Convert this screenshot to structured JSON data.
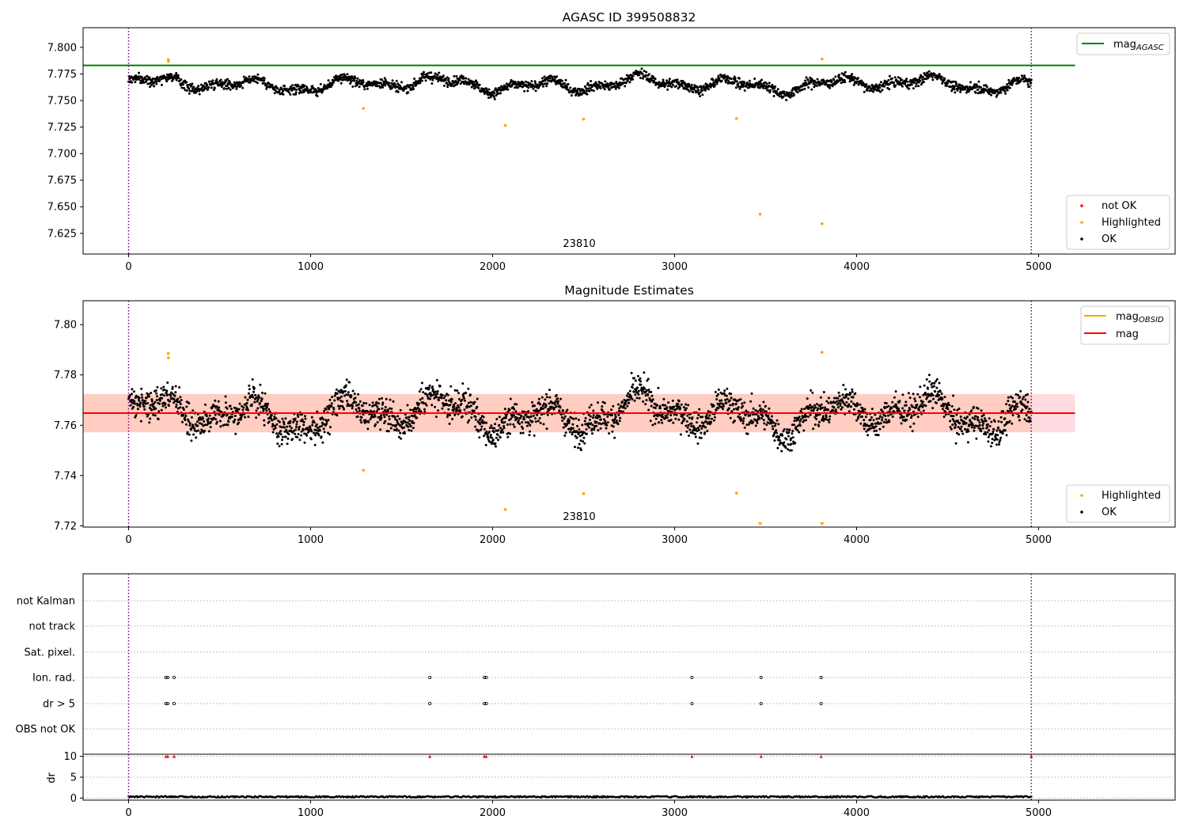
{
  "chart_data": [
    {
      "type": "scatter",
      "title": "AGASC ID 399508832",
      "annotation": "23810",
      "xlim": [
        -250,
        5750
      ],
      "ylim": [
        7.6055,
        7.8185
      ],
      "xticks": [
        0,
        1000,
        2000,
        3000,
        4000,
        5000
      ],
      "yticks": [
        7.625,
        7.65,
        7.675,
        7.7,
        7.725,
        7.75,
        7.775,
        7.8
      ],
      "ytick_labels": [
        "7.625",
        "7.650",
        "7.675",
        "7.700",
        "7.725",
        "7.750",
        "7.775",
        "7.800"
      ],
      "vlines": [
        0,
        4960
      ],
      "hlines": [
        {
          "name": "mag_AGASC",
          "y": 7.783,
          "x_range": [
            -250,
            5200
          ],
          "color": "#008000"
        }
      ],
      "series_ok": {
        "name": "OK",
        "color": "#000000",
        "x_range": [
          0,
          4960
        ],
        "n_points": 2200
      },
      "highlighted": {
        "name": "Highlighted",
        "color": "#ffa500",
        "points": [
          [
            218,
            7.7885
          ],
          [
            219,
            7.7868
          ],
          [
            1290,
            7.7425
          ],
          [
            2070,
            7.7265
          ],
          [
            2500,
            7.7325
          ],
          [
            3340,
            7.733
          ],
          [
            3470,
            7.643
          ],
          [
            3810,
            7.789
          ],
          [
            3810,
            7.634
          ]
        ]
      },
      "legend_upper": {
        "entries": [
          {
            "label": "mag",
            "sub": "AGASC",
            "color": "#008000"
          }
        ],
        "placement": "upper right"
      },
      "legend_lower": {
        "entries": [
          {
            "label": "not OK",
            "color": "#ff0000"
          },
          {
            "label": "Highlighted",
            "color": "#ffa500"
          },
          {
            "label": "OK",
            "color": "#000000"
          }
        ],
        "placement": "lower right"
      }
    },
    {
      "type": "scatter",
      "title": "Magnitude Estimates",
      "annotation": "23810",
      "xlim": [
        -250,
        5750
      ],
      "ylim": [
        7.7195,
        7.8095
      ],
      "xticks": [
        0,
        1000,
        2000,
        3000,
        4000,
        5000
      ],
      "yticks": [
        7.72,
        7.74,
        7.76,
        7.78,
        7.8
      ],
      "ytick_labels": [
        "7.72",
        "7.74",
        "7.76",
        "7.78",
        "7.80"
      ],
      "vlines": [
        0,
        4960
      ],
      "mean_line": {
        "name": "mag",
        "y": 7.7648,
        "color": "#ff0000"
      },
      "bands": [
        {
          "y": [
            7.7572,
            7.7724
          ],
          "color": "#ffc0c8"
        },
        {
          "y": [
            7.7572,
            7.7724
          ],
          "x_range": [
            -250,
            4960
          ],
          "color": "#ffc6b4"
        }
      ],
      "series_ok": {
        "name": "OK",
        "color": "#000000",
        "x_range": [
          0,
          4960
        ],
        "n_points": 2600
      },
      "highlighted": {
        "name": "Highlighted",
        "color": "#ffa500",
        "points": [
          [
            218,
            7.7885
          ],
          [
            219,
            7.7868
          ],
          [
            1290,
            7.7421
          ],
          [
            2070,
            7.7265
          ],
          [
            2500,
            7.7328
          ],
          [
            3340,
            7.733
          ],
          [
            3810,
            7.789
          ]
        ]
      },
      "legend_upper": {
        "entries": [
          {
            "label": "mag",
            "sub": "OBSID",
            "color": "#ffa500"
          },
          {
            "label": "mag",
            "color": "#ff0000"
          }
        ],
        "placement": "upper right"
      },
      "legend_lower": {
        "entries": [
          {
            "label": "Highlighted",
            "color": "#ffa500"
          },
          {
            "label": "OK",
            "color": "#000000"
          }
        ],
        "placement": "lower right"
      }
    },
    {
      "type": "scatter",
      "xlim": [
        -250,
        5750
      ],
      "categories": [
        "not Kalman",
        "not track",
        "Sat. pixel.",
        "Ion. rad.",
        "dr > 5",
        "OBS not OK"
      ],
      "vlines": [
        0,
        4960
      ],
      "flags": {
        "Ion. rad.": [
          205,
          215,
          250,
          1655,
          1955,
          1965,
          3095,
          3475,
          3805
        ],
        "dr > 5": [
          205,
          215,
          250,
          1655,
          1955,
          1965,
          3095,
          3475,
          3805
        ]
      },
      "dr_panel": {
        "ylabel": "dr",
        "ylim": [
          -0.5,
          10.5
        ],
        "yticks": [
          0,
          5,
          10
        ],
        "clipped_points": {
          "y": 10,
          "x": [
            205,
            215,
            250,
            1655,
            1955,
            1965,
            3095,
            3475,
            3805,
            4960
          ],
          "color": "#ff0000"
        },
        "series": {
          "color": "#000000",
          "typical": 0.3
        }
      },
      "xticks": [
        0,
        1000,
        2000,
        3000,
        4000,
        5000
      ]
    }
  ]
}
